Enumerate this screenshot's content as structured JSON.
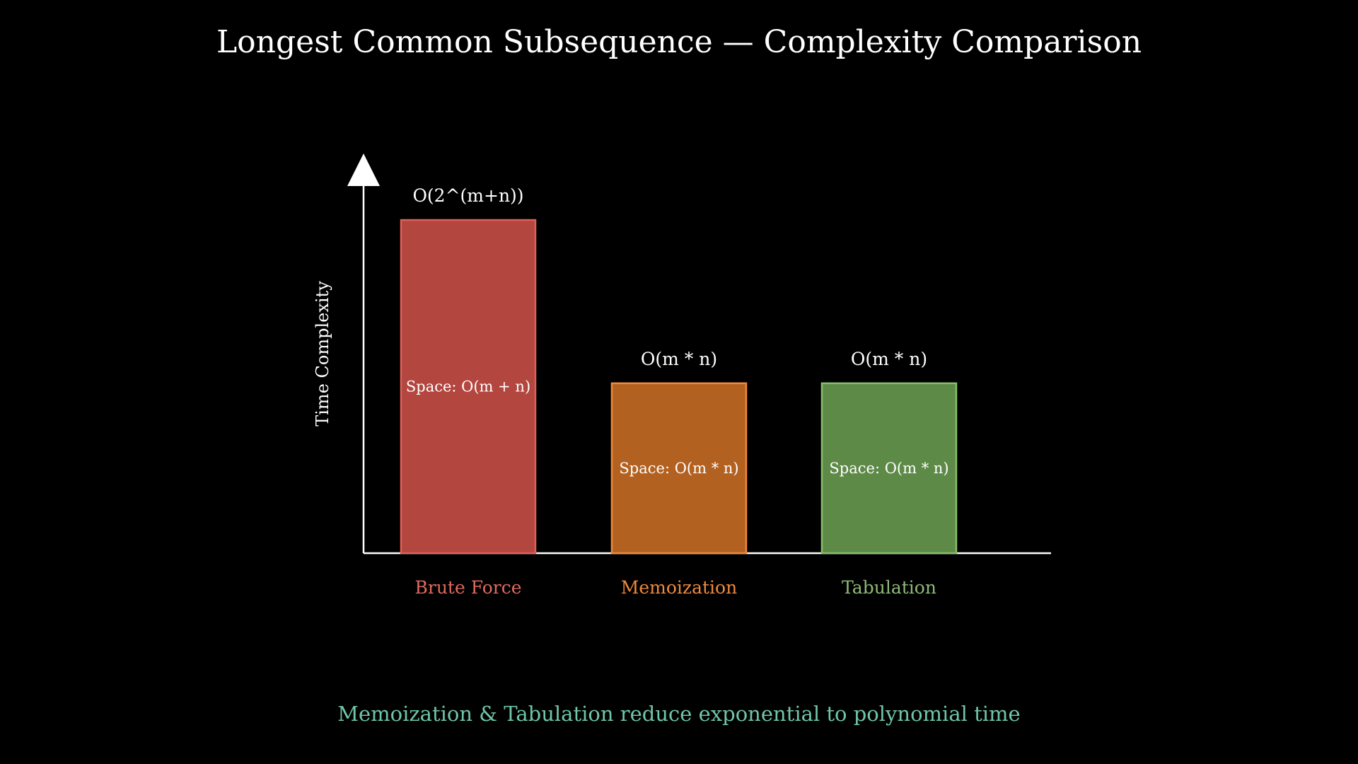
{
  "chart_data": {
    "type": "bar",
    "title": "Longest Common Subsequence — Complexity Comparison",
    "ylabel": "Time Complexity",
    "xlabel": "",
    "ylim": [
      0,
      1
    ],
    "grid": false,
    "categories": [
      "Brute Force",
      "Memoization",
      "Tabulation"
    ],
    "values": [
      1.0,
      0.51,
      0.51
    ],
    "time_labels": [
      "O(2^(m+n))",
      "O(m * n)",
      "O(m * n)"
    ],
    "space_labels": [
      "Space: O(m + n)",
      "Space: O(m * n)",
      "Space: O(m * n)"
    ],
    "colors": {
      "fill": [
        "#b3463f",
        "#b36120",
        "#5e8a48"
      ],
      "stroke": [
        "#e0605a",
        "#f08a3c",
        "#86c06a"
      ],
      "label": [
        "#e06a5f",
        "#f08a3c",
        "#8fba78"
      ],
      "axis": "#ffffff",
      "footer": "#6fc6a8"
    },
    "footer": "Memoization & Tabulation reduce exponential to polynomial time"
  }
}
